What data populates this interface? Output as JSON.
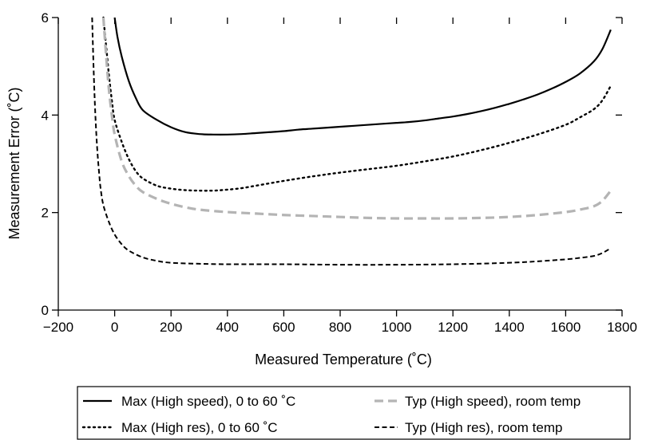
{
  "chart_data": {
    "type": "line",
    "title": "",
    "xlabel": "Measured Temperature (˚C)",
    "ylabel": "Measurement Error (˚C)",
    "xlim": [
      -200,
      1800
    ],
    "ylim": [
      0,
      6
    ],
    "x_ticks": [
      -200,
      0,
      200,
      400,
      600,
      800,
      1000,
      1200,
      1400,
      1600,
      1800
    ],
    "x_tick_labels": [
      "−200",
      "0",
      "200",
      "400",
      "600",
      "800",
      "1000",
      "1200",
      "1400",
      "1600",
      "1800"
    ],
    "y_ticks": [
      0,
      2,
      4,
      6
    ],
    "y_tick_labels": [
      "0",
      "2",
      "4",
      "6"
    ],
    "grid": false,
    "legend_position": "bottom",
    "series": [
      {
        "name": "Max (High speed), 0 to 60 ˚C",
        "color": "#000000",
        "style": "solid",
        "x": [
          0,
          10,
          25,
          50,
          75,
          100,
          150,
          200,
          250,
          300,
          350,
          400,
          450,
          500,
          550,
          600,
          650,
          700,
          750,
          800,
          850,
          900,
          950,
          1000,
          1050,
          1100,
          1150,
          1200,
          1250,
          1300,
          1350,
          1400,
          1450,
          1500,
          1550,
          1600,
          1650,
          1700,
          1730,
          1760
        ],
        "y": [
          6.0,
          5.6,
          5.2,
          4.7,
          4.35,
          4.1,
          3.9,
          3.75,
          3.65,
          3.61,
          3.6,
          3.6,
          3.61,
          3.63,
          3.65,
          3.67,
          3.7,
          3.72,
          3.74,
          3.76,
          3.78,
          3.8,
          3.82,
          3.84,
          3.86,
          3.89,
          3.93,
          3.97,
          4.02,
          4.08,
          4.15,
          4.23,
          4.32,
          4.42,
          4.54,
          4.68,
          4.85,
          5.1,
          5.35,
          5.75
        ]
      },
      {
        "name": "Max (High res), 0 to 60 ˚C",
        "color": "#000000",
        "style": "dotted",
        "x": [
          -40,
          -30,
          -20,
          -10,
          0,
          25,
          50,
          75,
          100,
          150,
          200,
          250,
          300,
          350,
          400,
          450,
          500,
          550,
          600,
          700,
          800,
          900,
          1000,
          1100,
          1200,
          1300,
          1400,
          1500,
          1600,
          1650,
          1700,
          1730,
          1760
        ],
        "y": [
          6.0,
          5.4,
          4.8,
          4.3,
          3.9,
          3.45,
          3.1,
          2.85,
          2.7,
          2.55,
          2.49,
          2.46,
          2.45,
          2.45,
          2.47,
          2.5,
          2.55,
          2.6,
          2.65,
          2.74,
          2.82,
          2.89,
          2.96,
          3.05,
          3.15,
          3.28,
          3.43,
          3.6,
          3.8,
          3.95,
          4.12,
          4.3,
          4.6
        ]
      },
      {
        "name": "Typ (High speed), room temp",
        "color": "#b4b4b4",
        "style": "dashed",
        "x": [
          -40,
          -30,
          -20,
          -10,
          0,
          25,
          50,
          75,
          100,
          150,
          200,
          250,
          300,
          400,
          500,
          600,
          700,
          800,
          900,
          1000,
          1100,
          1200,
          1300,
          1400,
          1500,
          1600,
          1650,
          1700,
          1730,
          1760
        ],
        "y": [
          6.0,
          5.2,
          4.5,
          4.0,
          3.6,
          3.05,
          2.75,
          2.55,
          2.42,
          2.28,
          2.18,
          2.11,
          2.06,
          2.01,
          1.98,
          1.95,
          1.93,
          1.91,
          1.89,
          1.88,
          1.88,
          1.88,
          1.89,
          1.91,
          1.95,
          2.01,
          2.06,
          2.13,
          2.24,
          2.45
        ]
      },
      {
        "name": "Typ (High res), room temp",
        "color": "#000000",
        "style": "dashed",
        "x": [
          -80,
          -75,
          -70,
          -65,
          -60,
          -55,
          -50,
          -40,
          -20,
          0,
          25,
          50,
          100,
          150,
          200,
          300,
          400,
          600,
          800,
          1000,
          1200,
          1400,
          1500,
          1600,
          1650,
          1700,
          1730,
          1760
        ],
        "y": [
          6.0,
          5.0,
          4.2,
          3.6,
          3.15,
          2.8,
          2.5,
          2.15,
          1.8,
          1.55,
          1.35,
          1.22,
          1.08,
          1.01,
          0.97,
          0.95,
          0.94,
          0.94,
          0.93,
          0.93,
          0.94,
          0.97,
          1.0,
          1.04,
          1.07,
          1.11,
          1.17,
          1.27
        ]
      }
    ]
  }
}
